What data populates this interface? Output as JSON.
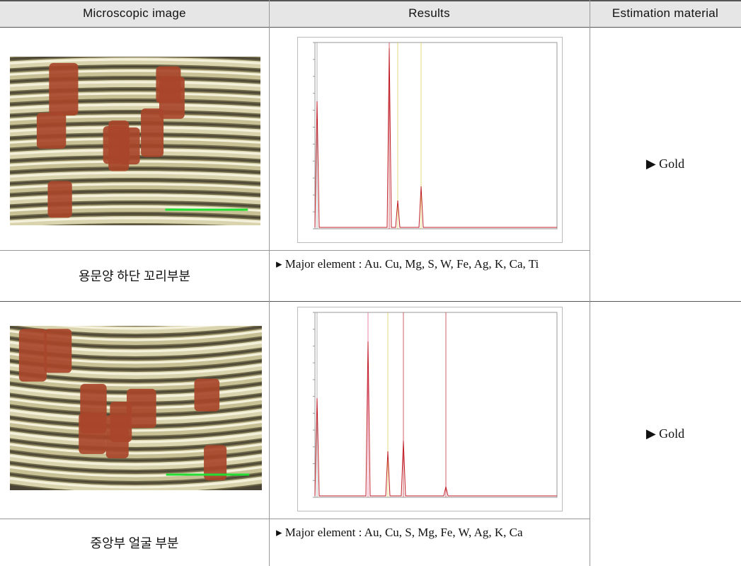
{
  "header": {
    "columns": [
      "Microscopic image",
      "Results",
      "Estimation material"
    ]
  },
  "rows": [
    {
      "label": "용문양 하단 꼬리부분",
      "elements": "▸ Major element : Au. Cu, Mg, S, W, Fe, Ag, K, Ca, Ti",
      "estimation": "▶ Gold"
    },
    {
      "label": "중앙부 얼굴 부분",
      "elements": "▸ Major element : Au, Cu, S, Mg, Fe, W, Ag, K, Ca",
      "estimation": "▶ Gold"
    }
  ]
}
